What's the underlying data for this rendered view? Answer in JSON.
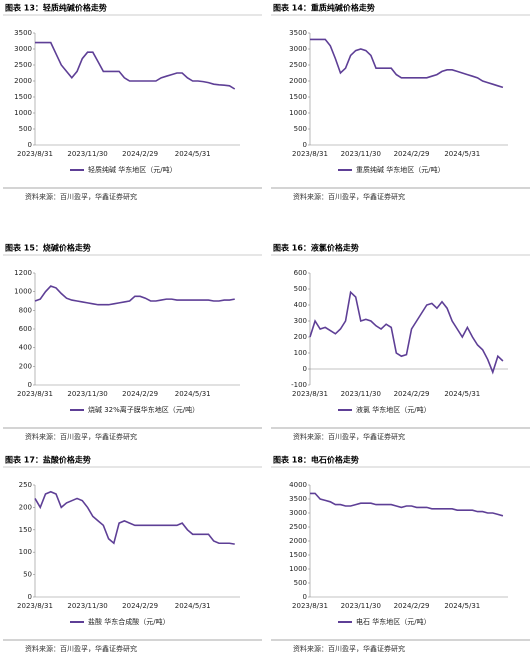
{
  "chart_data": [
    {
      "type": "line",
      "title": "图表 13：轻质纯碱价格走势",
      "source": "资料来源：百川盈孚，华鑫证券研究",
      "categories": [
        "2023/8/31",
        null,
        null,
        null,
        null,
        null,
        null,
        null,
        null,
        null,
        "2023/11/30",
        null,
        null,
        null,
        null,
        null,
        null,
        null,
        null,
        null,
        "2024/2/29",
        null,
        null,
        null,
        null,
        null,
        null,
        null,
        null,
        null,
        "2024/5/31",
        null,
        null,
        null,
        null,
        null,
        null,
        null,
        null
      ],
      "series": [
        {
          "name": "轻质纯碱 华东地区（元/吨）",
          "color": "#5e3f96",
          "values": [
            3200,
            3200,
            3200,
            3200,
            2850,
            2500,
            2300,
            2100,
            2300,
            2700,
            2900,
            2900,
            2600,
            2300,
            2300,
            2300,
            2300,
            2100,
            2000,
            2000,
            2000,
            2000,
            2000,
            2000,
            2100,
            2150,
            2200,
            2250,
            2250,
            2100,
            2000,
            2000,
            1980,
            1950,
            1900,
            1880,
            1870,
            1850,
            1750
          ]
        }
      ],
      "ylim": [
        0,
        3500
      ],
      "yticks": [
        0,
        500,
        1000,
        1500,
        2000,
        2500,
        3000,
        3500
      ]
    },
    {
      "type": "line",
      "title": "图表 14：重质纯碱价格走势",
      "source": "资料来源：百川盈孚，华鑫证券研究",
      "categories": [
        "2023/8/31",
        null,
        null,
        null,
        null,
        null,
        null,
        null,
        null,
        null,
        "2023/11/30",
        null,
        null,
        null,
        null,
        null,
        null,
        null,
        null,
        null,
        "2024/2/29",
        null,
        null,
        null,
        null,
        null,
        null,
        null,
        null,
        null,
        "2024/5/31",
        null,
        null,
        null,
        null,
        null,
        null,
        null,
        null
      ],
      "series": [
        {
          "name": "重质纯碱 华东地区（元/吨）",
          "color": "#5e3f96",
          "values": [
            3300,
            3300,
            3300,
            3300,
            3100,
            2700,
            2250,
            2400,
            2800,
            2950,
            3000,
            2950,
            2800,
            2400,
            2400,
            2400,
            2400,
            2200,
            2100,
            2100,
            2100,
            2100,
            2100,
            2100,
            2150,
            2200,
            2300,
            2350,
            2350,
            2300,
            2250,
            2200,
            2150,
            2100,
            2000,
            1950,
            1900,
            1850,
            1800
          ]
        }
      ],
      "ylim": [
        0,
        3500
      ],
      "yticks": [
        0,
        500,
        1000,
        1500,
        2000,
        2500,
        3000,
        3500
      ]
    },
    {
      "type": "line",
      "title": "图表 15：烧碱价格走势",
      "source": "资料来源：百川盈孚，华鑫证券研究",
      "categories": [
        "2023/8/31",
        null,
        null,
        null,
        null,
        null,
        null,
        null,
        null,
        null,
        "2023/11/30",
        null,
        null,
        null,
        null,
        null,
        null,
        null,
        null,
        null,
        "2024/2/29",
        null,
        null,
        null,
        null,
        null,
        null,
        null,
        null,
        null,
        "2024/5/31",
        null,
        null,
        null,
        null,
        null,
        null,
        null,
        null
      ],
      "series": [
        {
          "name": "烧碱 32%离子膜华东地区（元/吨）",
          "color": "#5e3f96",
          "values": [
            900,
            920,
            1000,
            1060,
            1040,
            980,
            930,
            910,
            900,
            890,
            880,
            870,
            860,
            860,
            860,
            870,
            880,
            890,
            900,
            950,
            950,
            930,
            900,
            900,
            910,
            920,
            920,
            910,
            910,
            910,
            910,
            910,
            910,
            910,
            900,
            900,
            910,
            910,
            920
          ]
        }
      ],
      "ylim": [
        0,
        1200
      ],
      "yticks": [
        0,
        200,
        400,
        600,
        800,
        1000,
        1200
      ]
    },
    {
      "type": "line",
      "title": "图表 16：液氯价格走势",
      "source": "资料来源：百川盈孚，华鑫证券研究",
      "categories": [
        "2023/8/31",
        null,
        null,
        null,
        null,
        null,
        null,
        null,
        null,
        null,
        "2023/11/30",
        null,
        null,
        null,
        null,
        null,
        null,
        null,
        null,
        null,
        "2024/2/29",
        null,
        null,
        null,
        null,
        null,
        null,
        null,
        null,
        null,
        "2024/5/31",
        null,
        null,
        null,
        null,
        null,
        null,
        null,
        null
      ],
      "series": [
        {
          "name": "液氯 华东地区（元/吨）",
          "color": "#5e3f96",
          "values": [
            200,
            300,
            250,
            260,
            240,
            220,
            250,
            300,
            480,
            450,
            300,
            310,
            300,
            270,
            250,
            280,
            260,
            100,
            80,
            90,
            250,
            300,
            350,
            400,
            410,
            380,
            420,
            380,
            300,
            250,
            200,
            260,
            200,
            150,
            120,
            60,
            -20,
            80,
            50
          ]
        }
      ],
      "ylim": [
        -100,
        600
      ],
      "yticks": [
        -100,
        0,
        100,
        200,
        300,
        400,
        500,
        600
      ]
    },
    {
      "type": "line",
      "title": "图表 17：盐酸价格走势",
      "source": "资料来源：百川盈孚，华鑫证券研究",
      "categories": [
        "2023/8/31",
        null,
        null,
        null,
        null,
        null,
        null,
        null,
        null,
        null,
        "2023/11/30",
        null,
        null,
        null,
        null,
        null,
        null,
        null,
        null,
        null,
        "2024/2/29",
        null,
        null,
        null,
        null,
        null,
        null,
        null,
        null,
        null,
        "2024/5/31",
        null,
        null,
        null,
        null,
        null,
        null,
        null,
        null
      ],
      "series": [
        {
          "name": "盐酸 华东合成酸（元/吨）",
          "color": "#5e3f96",
          "values": [
            220,
            200,
            230,
            235,
            230,
            200,
            210,
            215,
            220,
            215,
            200,
            180,
            170,
            160,
            130,
            120,
            165,
            170,
            165,
            160,
            160,
            160,
            160,
            160,
            160,
            160,
            160,
            160,
            165,
            150,
            140,
            140,
            140,
            140,
            125,
            120,
            120,
            120,
            118
          ]
        }
      ],
      "ylim": [
        0,
        250
      ],
      "yticks": [
        0,
        50,
        100,
        150,
        200,
        250
      ]
    },
    {
      "type": "line",
      "title": "图表 18：电石价格走势",
      "source": "资料来源：百川盈孚，华鑫证券研究",
      "categories": [
        "2023/8/31",
        null,
        null,
        null,
        null,
        null,
        null,
        null,
        null,
        null,
        "2023/11/30",
        null,
        null,
        null,
        null,
        null,
        null,
        null,
        null,
        null,
        "2024/2/29",
        null,
        null,
        null,
        null,
        null,
        null,
        null,
        null,
        null,
        "2024/5/31",
        null,
        null,
        null,
        null,
        null,
        null,
        null,
        null
      ],
      "series": [
        {
          "name": "电石 华东地区（元/吨）",
          "color": "#5e3f96",
          "values": [
            3700,
            3700,
            3500,
            3450,
            3400,
            3300,
            3300,
            3250,
            3250,
            3300,
            3350,
            3350,
            3350,
            3300,
            3300,
            3300,
            3300,
            3250,
            3200,
            3250,
            3250,
            3200,
            3200,
            3200,
            3150,
            3150,
            3150,
            3150,
            3150,
            3100,
            3100,
            3100,
            3100,
            3050,
            3050,
            3000,
            3000,
            2950,
            2900
          ]
        }
      ],
      "ylim": [
        0,
        4000
      ],
      "yticks": [
        0,
        500,
        1000,
        1500,
        2000,
        2500,
        3000,
        3500,
        4000
      ]
    }
  ]
}
